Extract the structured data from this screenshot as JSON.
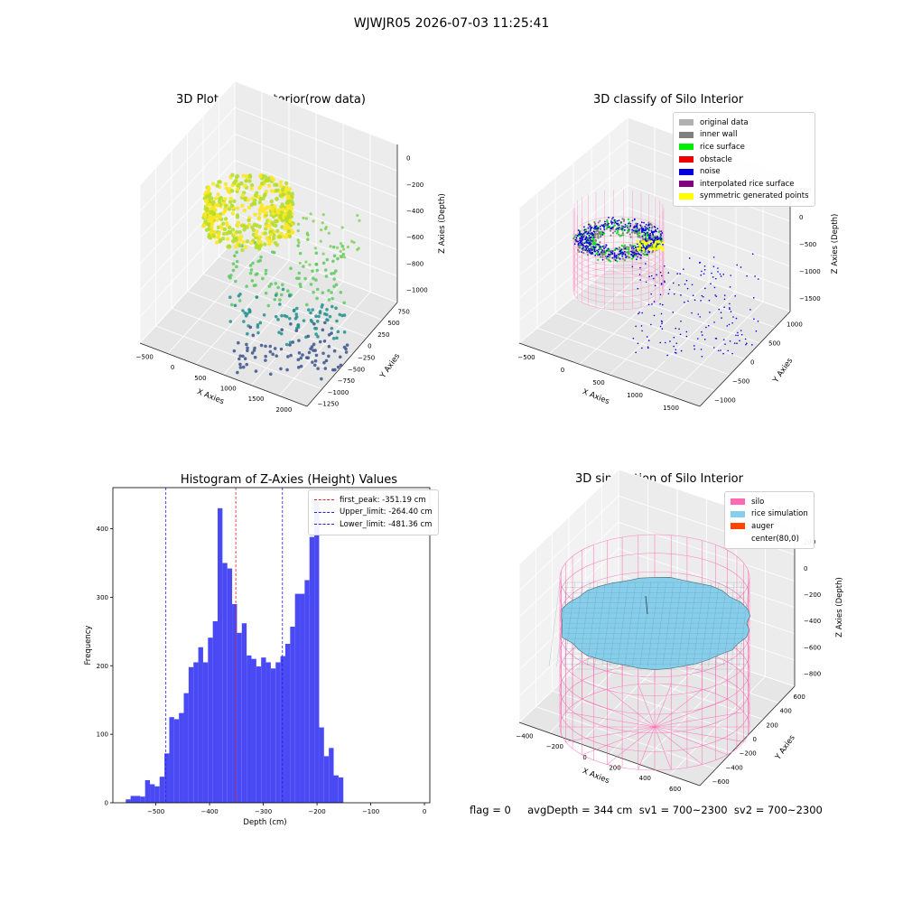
{
  "suptitle": "WJWJR05 2026-07-03 11:25:41",
  "footer": "flag = 0     avgDepth = 344 cm  sv1 = 700~2300  sv2 = 700~2300",
  "chart_data": [
    {
      "type": "scatter",
      "title": "3D Plot of Silo Interior(row data)",
      "xlabel": "X Axies",
      "ylabel": "Y Axies",
      "zlabel": "Z Axies (Depth)",
      "xticks": [
        "−500",
        "0",
        "500",
        "1000",
        "1500",
        "2000"
      ],
      "yticks": [
        "−1250",
        "−1000",
        "−750",
        "−500",
        "−250",
        "0",
        "250",
        "500",
        "750"
      ],
      "zticks": [
        "−1000",
        "−800",
        "−600",
        "−400",
        "−200",
        "0"
      ]
    },
    {
      "type": "scatter",
      "title": "3D classify of Silo Interior",
      "xlabel": "X Axies",
      "ylabel": "Y Axies",
      "zlabel": "Z Axies (Depth)",
      "xticks": [
        "−500",
        "0",
        "500",
        "1000",
        "1500"
      ],
      "yticks": [
        "−1000",
        "−500",
        "0",
        "500",
        "1000"
      ],
      "zticks": [
        "−1500",
        "−1000",
        "−500",
        "0",
        "500"
      ],
      "legend": [
        {
          "label": "original data",
          "color": "#b0b0b0"
        },
        {
          "label": "inner wall",
          "color": "#808080"
        },
        {
          "label": "rice surface",
          "color": "#00ee00"
        },
        {
          "label": "obstacle",
          "color": "#ee0000"
        },
        {
          "label": "noise",
          "color": "#0000dd"
        },
        {
          "label": "interpolated rice surface",
          "color": "#800080"
        },
        {
          "label": "symmetric generated points",
          "color": "#ffff00"
        }
      ]
    },
    {
      "type": "bar",
      "title": "Histogram of Z-Axies (Height) Values",
      "xlabel": "Depth (cm)",
      "ylabel": "Frequency",
      "xlim": [
        -580,
        10
      ],
      "ylim": [
        0,
        460
      ],
      "xticks": [
        -500,
        -400,
        -300,
        -200,
        -100,
        0
      ],
      "yticks": [
        0,
        100,
        200,
        300,
        400
      ],
      "bins": {
        "start": -556,
        "width": 9,
        "values": [
          5,
          10,
          10,
          9,
          33,
          27,
          24,
          38,
          72,
          125,
          122,
          131,
          160,
          198,
          205,
          227,
          205,
          241,
          265,
          430,
          350,
          342,
          290,
          248,
          262,
          215,
          210,
          199,
          212,
          205,
          196,
          205,
          214,
          232,
          257,
          305,
          305,
          325,
          388,
          440,
          110,
          68,
          80,
          40,
          37
        ]
      },
      "bar_color": "#4a4af5",
      "vlines": [
        {
          "label": "first_peak: -351.19 cm",
          "x": -351.19,
          "color": "#dd2222"
        },
        {
          "label": "Upper_limit: -264.40 cm",
          "x": -264.4,
          "color": "#2222dd"
        },
        {
          "label": "Lower_limit: -481.36 cm",
          "x": -481.36,
          "color": "#2222dd"
        }
      ]
    },
    {
      "type": "scatter",
      "title": "3D simulation of Silo Interior",
      "xlabel": "X Axies",
      "ylabel": "Y Axies",
      "zlabel": "Z Axies (Depth)",
      "xticks": [
        "−400",
        "−200",
        "0",
        "200",
        "400",
        "600"
      ],
      "yticks": [
        "−600",
        "−400",
        "−200",
        "0",
        "200",
        "400",
        "600"
      ],
      "zticks": [
        "−800",
        "−600",
        "−400",
        "−200",
        "0",
        "200"
      ],
      "legend": [
        {
          "label": "silo",
          "color": "#ff69b4"
        },
        {
          "label": "rice simulation",
          "color": "#87ceeb"
        },
        {
          "label": "auger",
          "color": "#ff4500"
        },
        {
          "label": "center(80,0)",
          "color": "#ffffff"
        }
      ]
    }
  ]
}
